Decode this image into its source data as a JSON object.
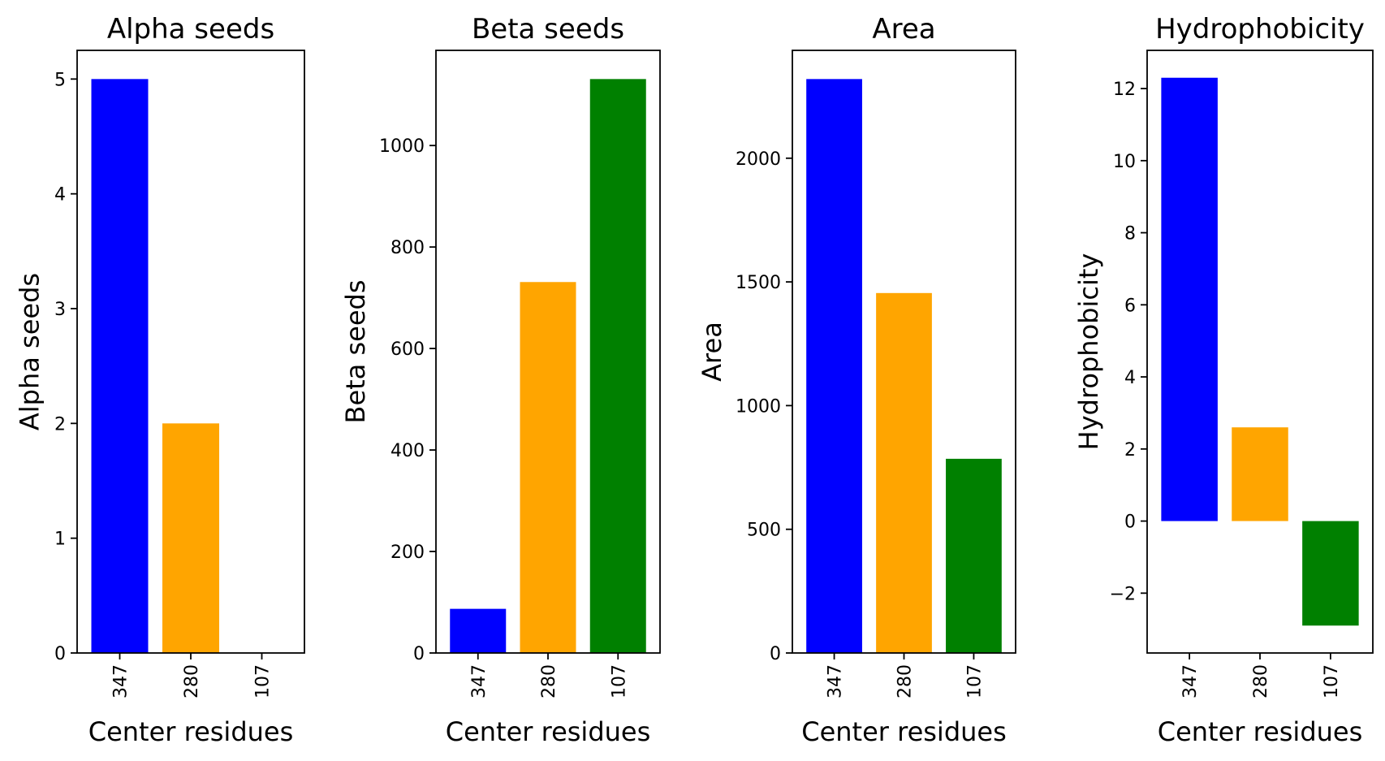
{
  "chart_data": [
    {
      "type": "bar",
      "title": "Alpha seeds",
      "xlabel": "Center residues",
      "ylabel": "Alpha seeds",
      "categories": [
        "347",
        "280",
        "107"
      ],
      "values": [
        5,
        2,
        0
      ],
      "colors": [
        "#0000ff",
        "#ffa500",
        "#008000"
      ],
      "ylim": [
        0,
        5.25
      ],
      "yticks": [
        0,
        1,
        2,
        3,
        4,
        5
      ],
      "ytick_labels": [
        "0",
        "1",
        "2",
        "3",
        "4",
        "5"
      ],
      "grid": false,
      "legend": "none"
    },
    {
      "type": "bar",
      "title": "Beta seeds",
      "xlabel": "Center residues",
      "ylabel": "Beta seeds",
      "categories": [
        "347",
        "280",
        "107"
      ],
      "values": [
        87,
        731,
        1131
      ],
      "colors": [
        "#0000ff",
        "#ffa500",
        "#008000"
      ],
      "ylim": [
        0,
        1187.55
      ],
      "yticks": [
        0,
        200,
        400,
        600,
        800,
        1000
      ],
      "ytick_labels": [
        "0",
        "200",
        "400",
        "600",
        "800",
        "1000"
      ],
      "grid": false,
      "legend": "none"
    },
    {
      "type": "bar",
      "title": "Area",
      "xlabel": "Center residues",
      "ylabel": "Area",
      "categories": [
        "347",
        "280",
        "107"
      ],
      "values": [
        2320,
        1455,
        785
      ],
      "colors": [
        "#0000ff",
        "#ffa500",
        "#008000"
      ],
      "ylim": [
        0,
        2436
      ],
      "yticks": [
        0,
        500,
        1000,
        1500,
        2000
      ],
      "ytick_labels": [
        "0",
        "500",
        "1000",
        "1500",
        "2000"
      ],
      "grid": false,
      "legend": "none"
    },
    {
      "type": "bar",
      "title": "Hydrophobicity",
      "xlabel": "Center residues",
      "ylabel": "Hydrophobicity",
      "categories": [
        "347",
        "280",
        "107"
      ],
      "values": [
        12.3,
        2.6,
        -2.9
      ],
      "colors": [
        "#0000ff",
        "#ffa500",
        "#008000"
      ],
      "ylim": [
        -3.66,
        13.06
      ],
      "yticks": [
        -2,
        0,
        2,
        4,
        6,
        8,
        10,
        12
      ],
      "ytick_labels": [
        "−2",
        "0",
        "2",
        "4",
        "6",
        "8",
        "10",
        "12"
      ],
      "grid": false,
      "legend": "none"
    }
  ]
}
